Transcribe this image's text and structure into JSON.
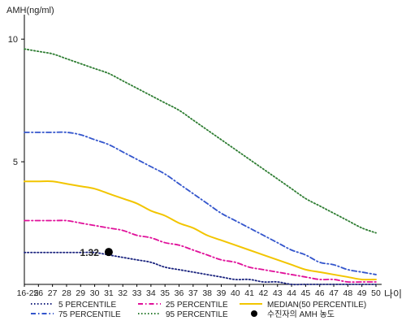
{
  "chart_data": {
    "type": "line",
    "ylabel": "AMH(ng/ml)",
    "xlabel": "나이",
    "x_ticks": [
      "16-25",
      "26",
      "27",
      "28",
      "29",
      "30",
      "31",
      "32",
      "33",
      "34",
      "35",
      "36",
      "37",
      "38",
      "39",
      "40",
      "41",
      "42",
      "43",
      "44",
      "45",
      "46",
      "47",
      "48",
      "49",
      "50"
    ],
    "y_ticks": [
      5,
      10
    ],
    "ylim": [
      0,
      11
    ],
    "grid": false,
    "legend_position": "bottom",
    "series": [
      {
        "name": "95 PERCENTILE",
        "color": "#2e7d32",
        "style": "dotted",
        "values": [
          9.6,
          9.5,
          9.4,
          9.2,
          9.0,
          8.8,
          8.6,
          8.3,
          8.0,
          7.7,
          7.4,
          7.1,
          6.7,
          6.3,
          5.9,
          5.5,
          5.1,
          4.7,
          4.3,
          3.9,
          3.5,
          3.2,
          2.9,
          2.6,
          2.3,
          2.1
        ]
      },
      {
        "name": "75 PERCENTILE",
        "color": "#3355cc",
        "style": "dashdot",
        "values": [
          6.2,
          6.2,
          6.2,
          6.2,
          6.1,
          5.9,
          5.7,
          5.4,
          5.1,
          4.8,
          4.5,
          4.1,
          3.7,
          3.3,
          2.9,
          2.6,
          2.3,
          2.0,
          1.7,
          1.4,
          1.2,
          0.9,
          0.8,
          0.6,
          0.5,
          0.4
        ]
      },
      {
        "name": "MEDIAN(50 PERCENTILE)",
        "color": "#f2c500",
        "style": "solid",
        "values": [
          4.2,
          4.2,
          4.2,
          4.1,
          4.0,
          3.9,
          3.7,
          3.5,
          3.3,
          3.0,
          2.8,
          2.5,
          2.3,
          2.0,
          1.8,
          1.6,
          1.4,
          1.2,
          1.0,
          0.8,
          0.6,
          0.5,
          0.4,
          0.3,
          0.2,
          0.2
        ]
      },
      {
        "name": "25 PERCENTILE",
        "color": "#e0109a",
        "style": "dashdot",
        "values": [
          2.6,
          2.6,
          2.6,
          2.6,
          2.5,
          2.4,
          2.3,
          2.2,
          2.0,
          1.9,
          1.7,
          1.6,
          1.4,
          1.2,
          1.0,
          0.9,
          0.7,
          0.6,
          0.5,
          0.4,
          0.3,
          0.2,
          0.2,
          0.1,
          0.1,
          0.1
        ]
      },
      {
        "name": "5 PERCENTILE",
        "color": "#1a237e",
        "style": "dotted",
        "values": [
          1.3,
          1.3,
          1.3,
          1.3,
          1.3,
          1.3,
          1.2,
          1.1,
          1.0,
          0.9,
          0.7,
          0.6,
          0.5,
          0.4,
          0.3,
          0.2,
          0.2,
          0.1,
          0.1,
          0.0,
          0.0,
          0.0,
          0.0,
          0.0,
          0.0,
          0.0
        ]
      }
    ],
    "patient_point": {
      "label": "수진자의 AMH 농도",
      "x": "31",
      "y": 1.32,
      "value_label": "1.32",
      "color": "#000000"
    }
  }
}
